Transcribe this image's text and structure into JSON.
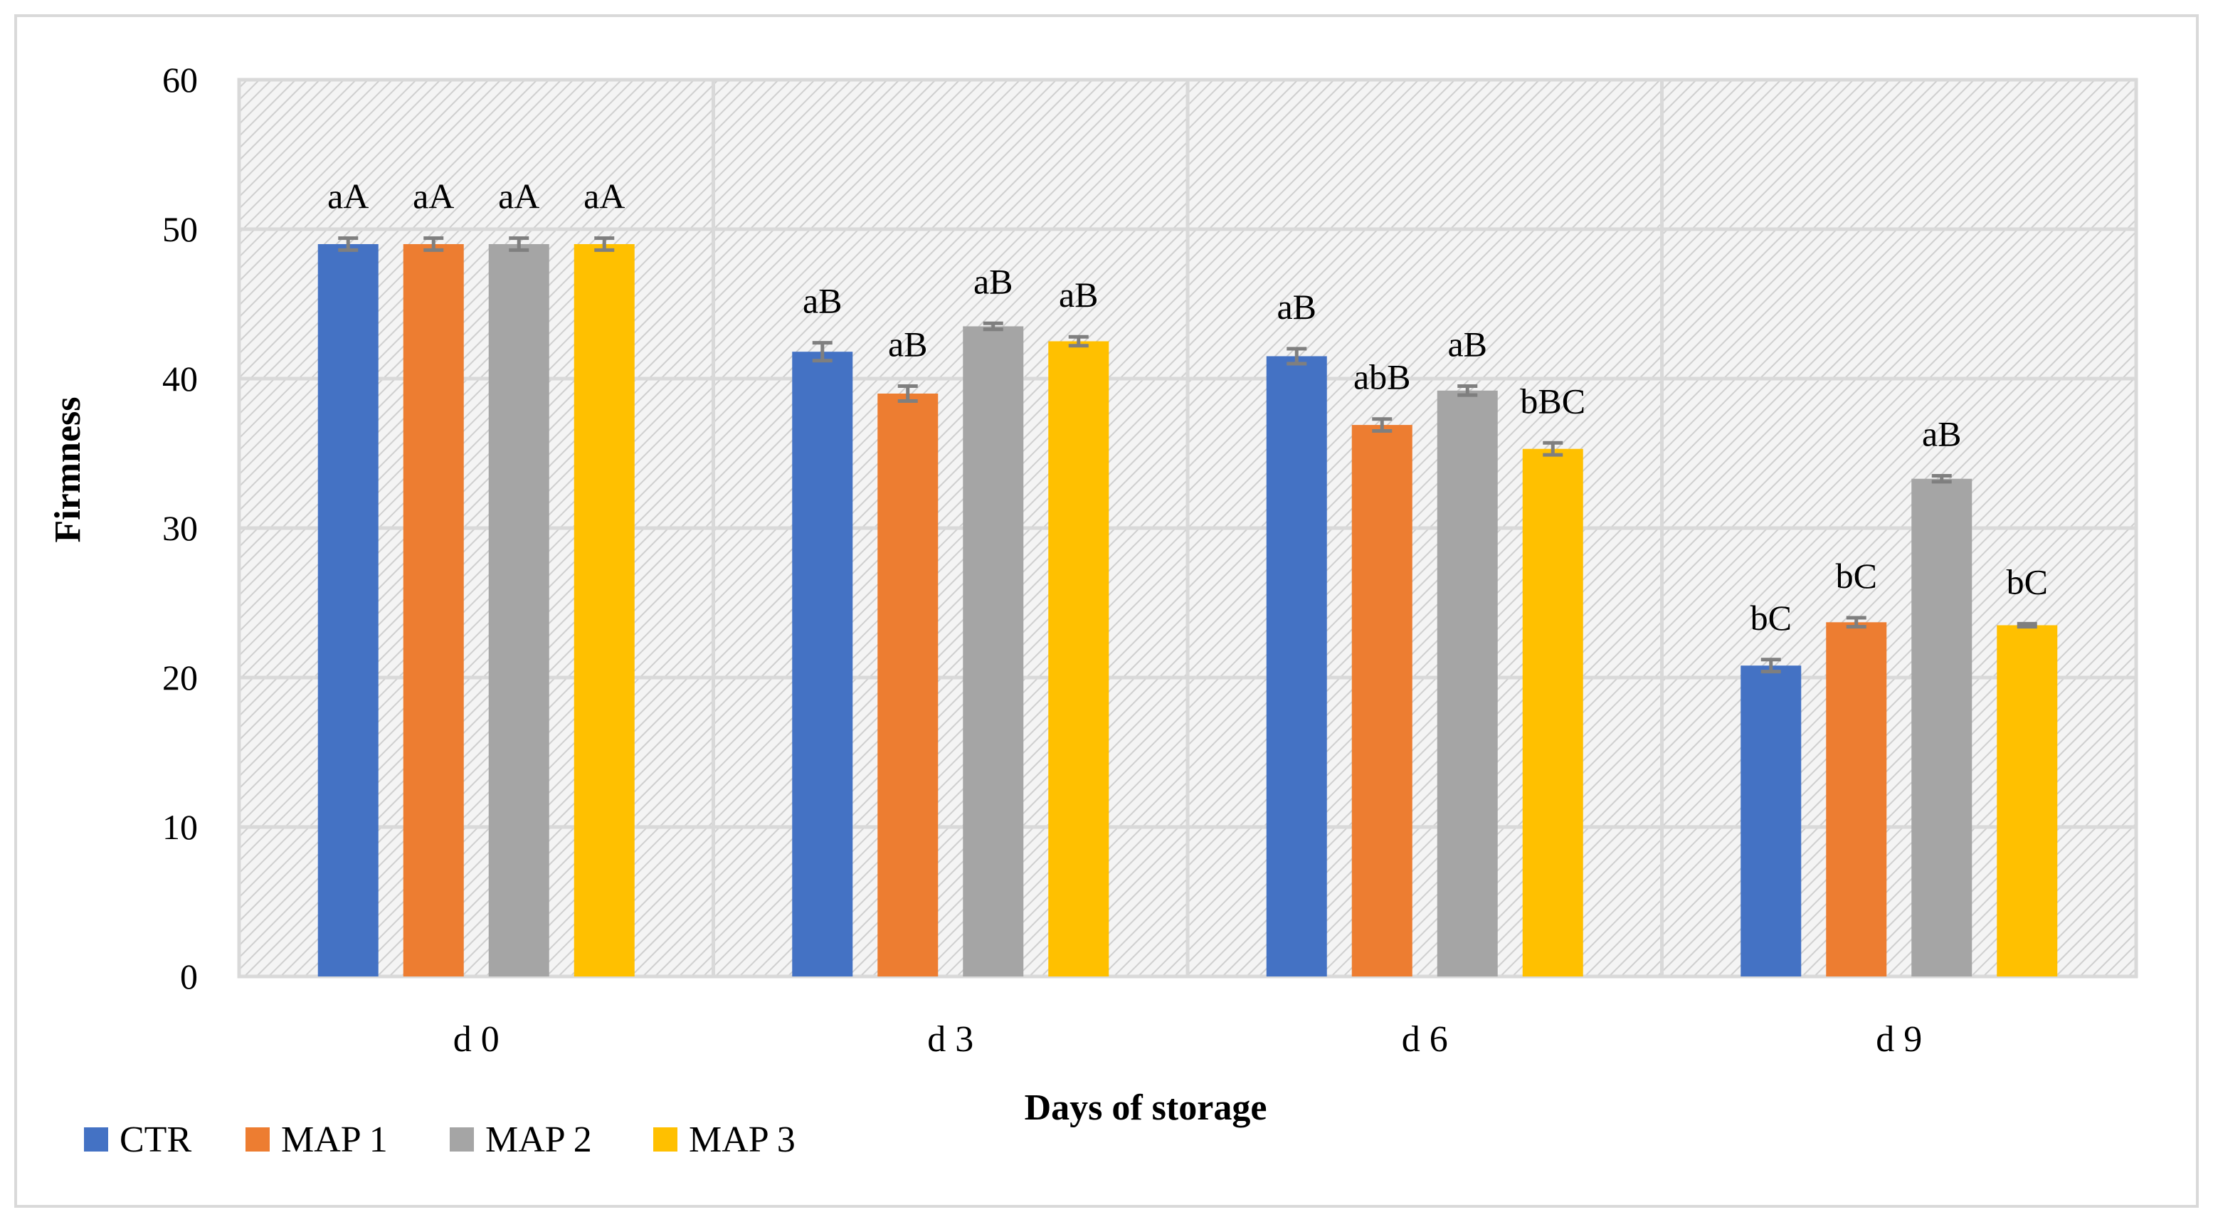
{
  "chart_data": {
    "type": "bar",
    "title": "",
    "xlabel": "Days of storage",
    "ylabel": "Firmness",
    "ylim": [
      0,
      60
    ],
    "yticks": [
      "0",
      "10",
      "20",
      "30",
      "40",
      "50",
      "60"
    ],
    "grid": true,
    "legend_position": "bottom-left",
    "categories": [
      "d 0",
      "d 3",
      "d 6",
      "d 9"
    ],
    "series": [
      {
        "name": "CTR",
        "color": "#4472C4",
        "values": [
          49.0,
          41.8,
          41.5,
          20.8
        ],
        "errors": [
          0.4,
          0.6,
          0.5,
          0.4
        ],
        "labels": [
          "aA",
          "aB",
          "aB",
          "bC"
        ]
      },
      {
        "name": "MAP 1",
        "color": "#ED7D31",
        "values": [
          49.0,
          39.0,
          36.9,
          23.7
        ],
        "errors": [
          0.4,
          0.5,
          0.4,
          0.3
        ],
        "labels": [
          "aA",
          "aB",
          "abB",
          "bC"
        ]
      },
      {
        "name": "MAP 2",
        "color": "#A5A5A5",
        "values": [
          49.0,
          43.5,
          39.2,
          33.3
        ],
        "errors": [
          0.4,
          0.2,
          0.3,
          0.2
        ],
        "labels": [
          "aA",
          "aB",
          "aB",
          "aB"
        ]
      },
      {
        "name": "MAP 3",
        "color": "#FFC000",
        "values": [
          49.0,
          42.5,
          35.3,
          23.5
        ],
        "errors": [
          0.4,
          0.3,
          0.4,
          0.1
        ],
        "labels": [
          "aA",
          "aB",
          "bBC",
          "bC"
        ]
      }
    ]
  }
}
